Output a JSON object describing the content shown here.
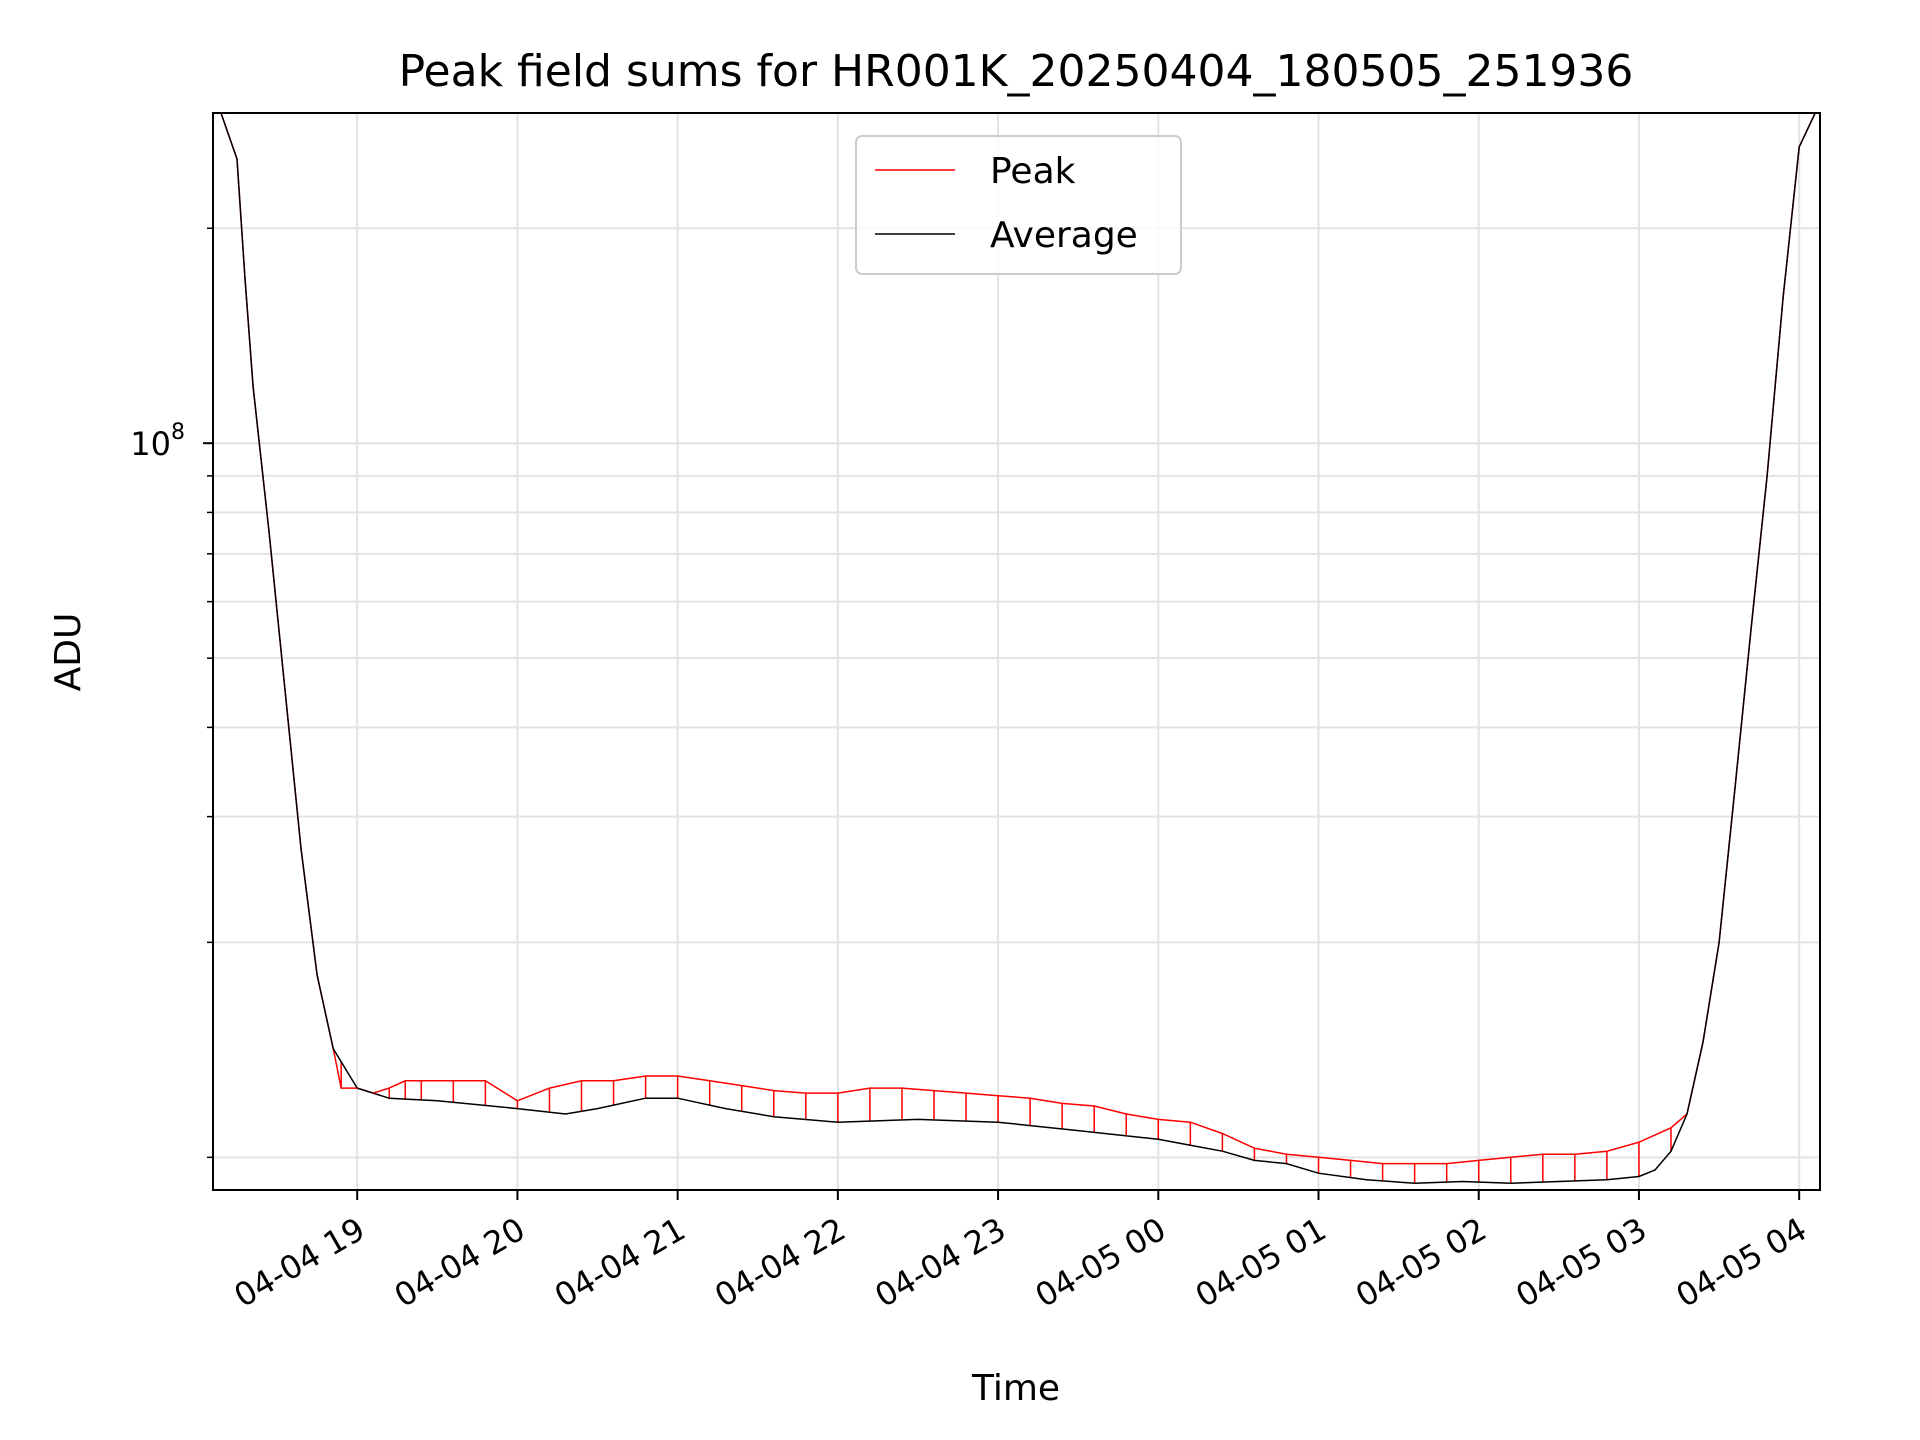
{
  "chart_data": {
    "type": "line",
    "title": "Peak field sums for HR001K_20250404_180505_251936",
    "xlabel": "Time",
    "ylabel": "ADU",
    "yscale": "log",
    "grid": true,
    "legend_position": "upper-center",
    "x_unit": "hours after 2025-04-04 18:00",
    "xlim": [
      0.1,
      10.13
    ],
    "ylim": [
      9000000,
      290000000
    ],
    "x_tick_values": [
      1,
      2,
      3,
      4,
      5,
      6,
      7,
      8,
      9,
      10
    ],
    "x_tick_labels": [
      "04-04 19",
      "04-04 20",
      "04-04 21",
      "04-04 22",
      "04-04 23",
      "04-05 00",
      "04-05 01",
      "04-05 02",
      "04-05 03",
      "04-05 04"
    ],
    "y_major_ticks": [
      {
        "value": 100000000,
        "base": "10",
        "exp": "8"
      }
    ],
    "y_minor_ticks": [
      10000000,
      20000000,
      30000000,
      40000000,
      50000000,
      60000000,
      70000000,
      80000000,
      90000000,
      200000000
    ],
    "series": [
      {
        "name": "Peak",
        "color": "#ff0000",
        "x": [
          0.9,
          1.0,
          1.1,
          1.2,
          1.3,
          1.4,
          1.6,
          1.8,
          2.0,
          2.2,
          2.4,
          2.6,
          2.8,
          3.0,
          3.2,
          3.4,
          3.6,
          3.8,
          4.0,
          4.2,
          4.4,
          4.6,
          4.8,
          5.0,
          5.2,
          5.4,
          5.6,
          5.8,
          6.0,
          6.2,
          6.4,
          6.6,
          6.8,
          7.0,
          7.2,
          7.4,
          7.6,
          7.8,
          8.0,
          8.2,
          8.4,
          8.6,
          8.8,
          9.0,
          9.2
        ],
        "values": [
          12500000,
          12500000,
          12300000,
          12500000,
          12800000,
          12800000,
          12800000,
          12800000,
          12000000,
          12500000,
          12800000,
          12800000,
          13000000,
          13000000,
          12800000,
          12600000,
          12400000,
          12300000,
          12300000,
          12500000,
          12500000,
          12400000,
          12300000,
          12200000,
          12100000,
          11900000,
          11800000,
          11500000,
          11300000,
          11200000,
          10800000,
          10300000,
          10100000,
          10000000,
          9900000,
          9800000,
          9800000,
          9800000,
          9900000,
          10000000,
          10100000,
          10100000,
          10200000,
          10500000,
          11000000
        ]
      },
      {
        "name": "Average",
        "color": "#000000",
        "x": [
          0.1,
          0.15,
          0.25,
          0.3,
          0.35,
          0.45,
          0.55,
          0.65,
          0.75,
          0.85,
          1.0,
          1.2,
          1.5,
          2.0,
          2.3,
          2.5,
          2.8,
          3.0,
          3.3,
          3.6,
          4.0,
          4.5,
          5.0,
          5.5,
          6.0,
          6.2,
          6.4,
          6.6,
          6.8,
          7.0,
          7.3,
          7.6,
          7.9,
          8.2,
          8.5,
          8.8,
          9.0,
          9.1,
          9.2,
          9.3,
          9.4,
          9.5,
          9.6,
          9.7,
          9.8,
          9.9,
          10.0,
          10.1
        ],
        "values": [
          290000000,
          290000000,
          250000000,
          170000000,
          120000000,
          75000000,
          45000000,
          27000000,
          18000000,
          14200000,
          12500000,
          12100000,
          12000000,
          11700000,
          11500000,
          11700000,
          12100000,
          12100000,
          11700000,
          11400000,
          11200000,
          11300000,
          11200000,
          10900000,
          10600000,
          10400000,
          10200000,
          9900000,
          9800000,
          9500000,
          9300000,
          9200000,
          9250000,
          9200000,
          9250000,
          9300000,
          9400000,
          9600000,
          10200000,
          11500000,
          14500000,
          20000000,
          33000000,
          55000000,
          90000000,
          160000000,
          260000000,
          290000000
        ]
      }
    ]
  }
}
